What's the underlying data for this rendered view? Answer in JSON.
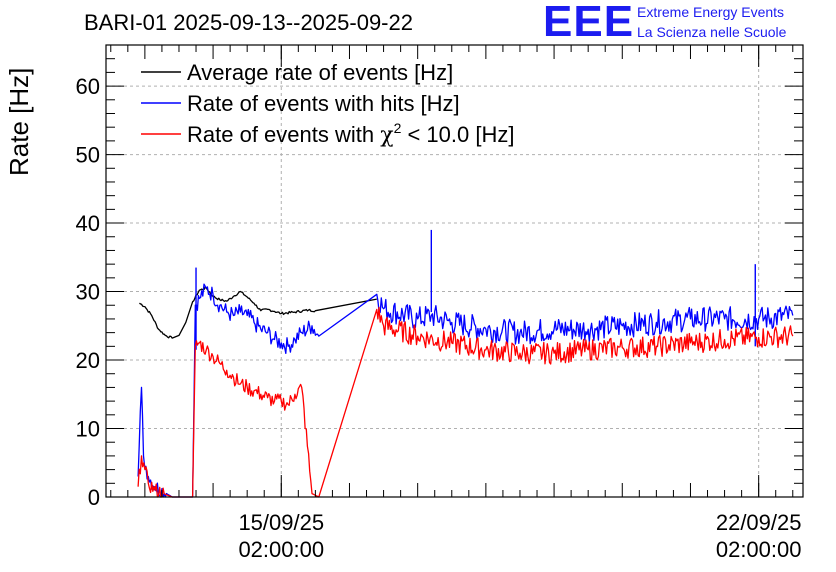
{
  "title": "BARI-01 2025-09-13--2025-09-22",
  "logo": {
    "mark": "EEE",
    "line1": "Extreme Energy Events",
    "line2": "La Scienza nelle Scuole",
    "color": "#1c1cf0"
  },
  "chart_data": {
    "type": "line",
    "title": "BARI-01 2025-09-13--2025-09-22",
    "ylabel": "Rate [Hz]",
    "xlabel": "",
    "ylim": [
      0,
      66
    ],
    "xlim_days": [
      -2.57,
      7.65
    ],
    "x_unit": "days relative to 15/09/25 02:00:00",
    "y_ticks": [
      0,
      10,
      20,
      30,
      40,
      50,
      60
    ],
    "x_ticks": [
      {
        "x": 0,
        "label_line1": "15/09/25",
        "label_line2": "02:00:00"
      },
      {
        "x": 7,
        "label_line1": "22/09/25",
        "label_line2": "02:00:00"
      }
    ],
    "grid": true,
    "legend_position": "top-left",
    "series": [
      {
        "name": "Average rate of events [Hz]",
        "legend_main": "Average rate of events [Hz]",
        "color": "#000000",
        "x": [
          -2.08,
          -2.0,
          -1.9,
          -1.8,
          -1.7,
          -1.6,
          -1.5,
          -1.4,
          -1.3,
          -1.2,
          -1.1,
          -1.0,
          -0.9,
          -0.8,
          -0.7,
          -0.6,
          -0.5,
          -0.4,
          -0.3,
          -0.2,
          -0.1,
          0.0,
          0.2,
          0.4,
          0.5,
          1.4
        ],
        "y": [
          28.3,
          27.8,
          26.5,
          24.5,
          23.6,
          23.2,
          23.6,
          25.5,
          28.5,
          30.2,
          30.5,
          29.3,
          28.8,
          28.6,
          29.3,
          30.0,
          29.2,
          28.3,
          27.2,
          27.4,
          27.1,
          26.8,
          27.0,
          27.3,
          27.2,
          28.9
        ]
      },
      {
        "name": "Rate of events with hits [Hz]",
        "legend_main": "Rate of events with hits [Hz]",
        "color": "#0000ff",
        "x": [
          -2.1,
          -2.05,
          -2.02,
          -1.95,
          -1.85,
          -1.6,
          -1.3,
          -1.26,
          -1.2,
          -1.1,
          -1.0,
          -0.9,
          -0.8,
          -0.7,
          -0.6,
          -0.5,
          -0.4,
          -0.3,
          -0.2,
          -0.1,
          0.0,
          0.1,
          0.2,
          0.3,
          0.45,
          0.55,
          1.4,
          1.5,
          2.0,
          2.2,
          2.5,
          3.0,
          3.5,
          4.0,
          4.5,
          5.0,
          5.5,
          6.0,
          6.5,
          7.0,
          7.5
        ],
        "y": [
          3,
          16,
          6,
          3,
          1.5,
          0,
          0,
          28,
          29,
          30.5,
          29.5,
          28,
          27,
          26.5,
          27,
          26.5,
          25.5,
          24.5,
          24,
          23,
          22.5,
          22,
          23,
          24,
          25,
          23.5,
          29.6,
          27.5,
          26,
          26.5,
          25.5,
          24.5,
          24,
          24.5,
          24.5,
          25,
          25.5,
          26,
          26,
          26,
          26.5
        ],
        "spikes": [
          {
            "x": 2.2,
            "y": 39
          },
          {
            "x": 6.95,
            "y": 34
          },
          {
            "x": -1.25,
            "y": 33.5
          }
        ]
      },
      {
        "name": "Rate of events with chi2 < 10.0 [Hz]",
        "legend_main": "Rate of events with ",
        "legend_symbol": "χ",
        "legend_sup": "2",
        "legend_rest": " < 10.0 [Hz]",
        "color": "#ff0000",
        "x": [
          -2.1,
          -2.05,
          -2.0,
          -1.95,
          -1.85,
          -1.6,
          -1.3,
          -1.26,
          -1.2,
          -1.1,
          -1.0,
          -0.9,
          -0.8,
          -0.7,
          -0.6,
          -0.5,
          -0.4,
          -0.3,
          -0.2,
          -0.1,
          0.0,
          0.1,
          0.2,
          0.3,
          0.45,
          0.55,
          1.4,
          1.5,
          2.0,
          2.5,
          3.0,
          3.5,
          4.0,
          4.5,
          5.0,
          5.5,
          6.0,
          6.5,
          7.0,
          7.5
        ],
        "y": [
          1.5,
          6,
          4,
          2,
          1,
          0,
          0,
          22,
          22.5,
          21.5,
          20.5,
          19.5,
          18.5,
          17.5,
          16.5,
          16,
          15.5,
          15,
          14.5,
          14,
          14,
          13.5,
          15,
          16,
          0.5,
          0,
          27.4,
          25,
          23.5,
          22.5,
          21.5,
          21,
          21,
          21.5,
          21.8,
          22,
          22.5,
          23,
          23.3,
          23.5
        ]
      }
    ]
  }
}
